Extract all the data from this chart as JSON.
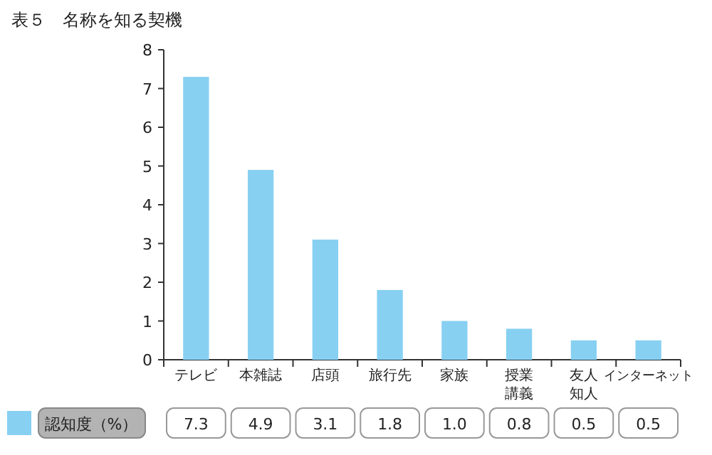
{
  "chart_data": {
    "type": "bar",
    "title": "表５　名称を知る契機",
    "categories": [
      "テレビ",
      "本雑誌",
      "店頭",
      "旅行先",
      "家族",
      "授業講義",
      "友人知人",
      "インターネット"
    ],
    "series": [
      {
        "name": "認知度（%）",
        "color": "#87d0f2",
        "values": [
          7.3,
          4.9,
          3.1,
          1.8,
          1.0,
          0.8,
          0.5,
          0.5
        ],
        "value_labels": [
          "7.3",
          "4.9",
          "3.1",
          "1.8",
          "1.0",
          "0.8",
          "0.5",
          "0.5"
        ]
      }
    ],
    "ylim": [
      0,
      8
    ],
    "yticks": [
      0,
      1,
      2,
      3,
      4,
      5,
      6,
      7,
      8
    ],
    "grid": false,
    "legend": "bottom"
  }
}
